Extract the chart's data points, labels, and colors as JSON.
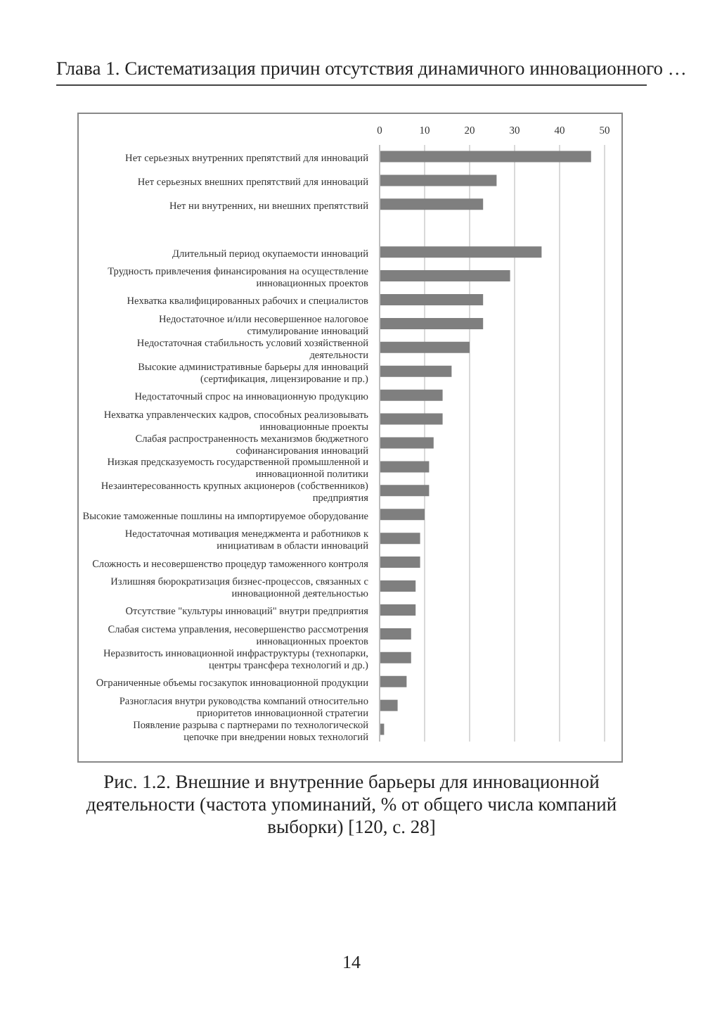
{
  "chart_data": {
    "type": "bar",
    "orientation": "horizontal",
    "title": "Рис. 1.2. Внешние и внутренние барьеры для инновационной деятельности (частота упоминаний, % от общего числа компаний выборки) [120, с. 28]",
    "annotations": [
      "Глава 1. Систематизация причин отсутствия динамичного инновационного …",
      "14"
    ],
    "categories": [
      "Нет серьезных внутренних препятствий для инноваций",
      "Нет серьезных внешних препятствий для инноваций",
      "Нет ни внутренних, ни внешних препятствий",
      null,
      "Длительный период окупаемости инноваций",
      "Трудность привлечения финансирования на осуществление инновационных проектов",
      "Нехватка квалифицированных рабочих и специалистов",
      "Недостаточное и/или несовершенное налоговое стимулирование инноваций",
      "Недостаточная стабильность условий хозяйственной деятельности",
      "Высокие административные барьеры для инноваций (сертификация, лицензирование и пр.)",
      "Недостаточный спрос на инновационную продукцию",
      "Нехватка управленческих кадров, способных реализовывать инновационные проекты",
      "Слабая распространенность механизмов бюджетного софинансирования инноваций",
      "Низкая предсказуемость государственной промышленной и инновационной политики",
      "Незаинтересованность крупных акционеров (собственников) предприятия",
      "Высокие таможенные пошлины на импортируемое оборудование",
      "Недостаточная мотивация менеджмента и работников к инициативам в области инноваций",
      "Сложность и несовершенство процедур таможенного контроля",
      "Излишняя бюрократизация бизнес-процессов, связанных с инновационной деятельностью",
      "Отсутствие \"культуры инноваций\" внутри предприятия",
      "Слабая система управления, несовершенство рассмотрения инновационных проектов",
      "Неразвитость инновационной инфраструктуры (технопарки, центры трансфера технологий и др.)",
      "Ограниченные объемы госзакупок инновационной продукции",
      "Разногласия внутри руководства компаний относительно приоритетов инновационной стратегии",
      "Появление разрыва с партнерами по технологической цепочке при внедрении новых технологий"
    ],
    "values": [
      47,
      26,
      23,
      null,
      36,
      29,
      23,
      23,
      20,
      16,
      14,
      14,
      12,
      11,
      11,
      10,
      9,
      9,
      8,
      8,
      7,
      7,
      6,
      4,
      1
    ],
    "color": "#7f7f7f",
    "xlim": [
      0,
      50
    ],
    "xticks": [
      0,
      10,
      20,
      30,
      40,
      50
    ],
    "grid": "x"
  }
}
